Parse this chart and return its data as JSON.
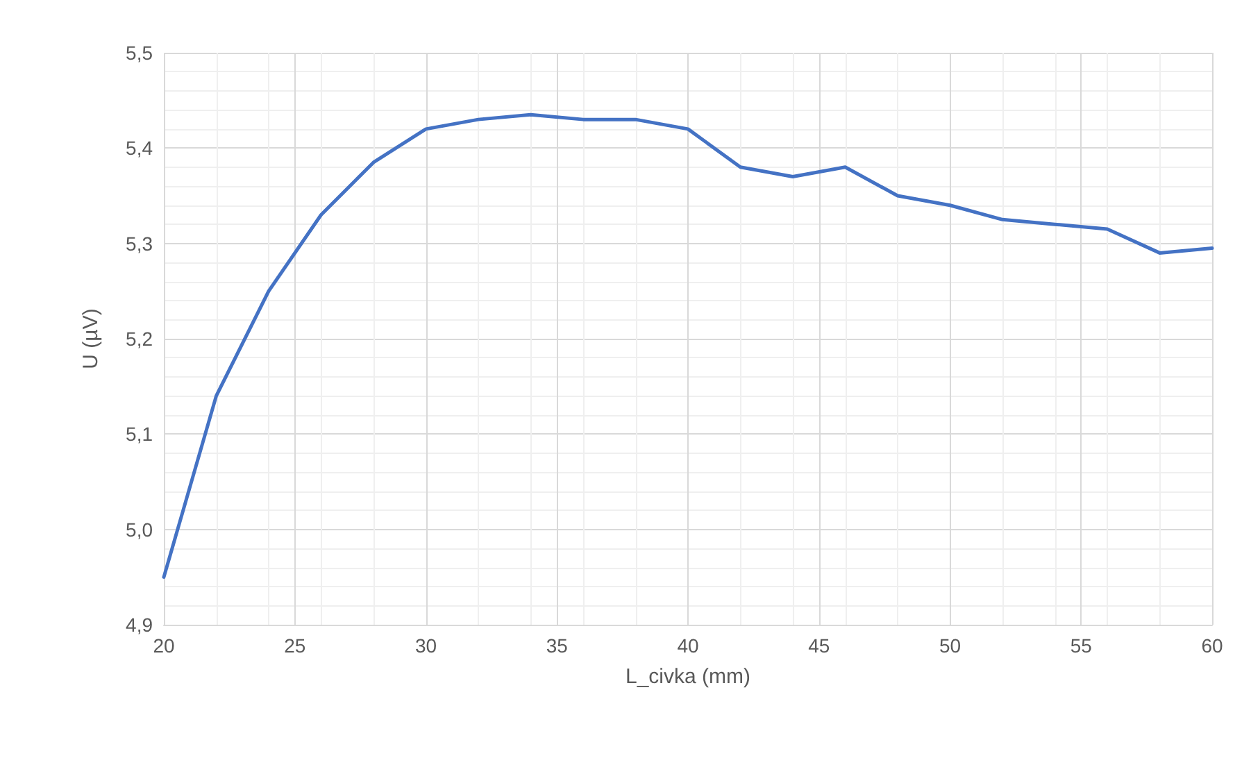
{
  "chart_data": {
    "type": "line",
    "xlabel": "L_civka (mm)",
    "ylabel": "U (µV)",
    "x": [
      20,
      22,
      24,
      26,
      28,
      30,
      32,
      34,
      36,
      38,
      40,
      42,
      44,
      46,
      48,
      50,
      52,
      54,
      56,
      58,
      60
    ],
    "series": [
      {
        "color": "#4472c4",
        "values": [
          4.95,
          5.14,
          5.25,
          5.33,
          5.385,
          5.42,
          5.43,
          5.435,
          5.43,
          5.43,
          5.42,
          5.38,
          5.37,
          5.38,
          5.35,
          5.34,
          5.325,
          5.32,
          5.315,
          5.29,
          5.295
        ]
      }
    ],
    "xlim": [
      20,
      60
    ],
    "xticks": [
      20,
      25,
      30,
      35,
      40,
      45,
      50,
      55,
      60
    ],
    "ylim": [
      4.9,
      5.5
    ],
    "yticks": [
      {
        "value": 4.9,
        "label": "4,9"
      },
      {
        "value": 5.0,
        "label": "5,0"
      },
      {
        "value": 5.1,
        "label": "5,1"
      },
      {
        "value": 5.2,
        "label": "5,2"
      },
      {
        "value": 5.3,
        "label": "5,3"
      },
      {
        "value": 5.4,
        "label": "5,4"
      },
      {
        "value": 5.5,
        "label": "5,5"
      }
    ],
    "grid": true,
    "marker": "none",
    "line_style": "solid"
  }
}
